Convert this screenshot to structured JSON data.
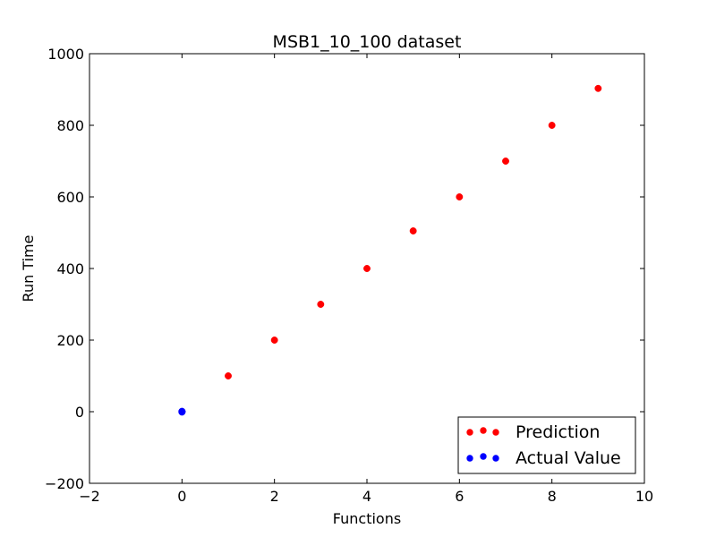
{
  "chart_data": {
    "type": "scatter",
    "title": "MSB1_10_100 dataset",
    "xlabel": "Functions",
    "ylabel": "Run Time",
    "xlim": [
      -2,
      10
    ],
    "ylim": [
      -200,
      1000
    ],
    "xticks": [
      -2,
      0,
      2,
      4,
      6,
      8,
      10
    ],
    "yticks": [
      -200,
      0,
      200,
      400,
      600,
      800,
      1000
    ],
    "xtick_labels": [
      "−2",
      "0",
      "2",
      "4",
      "6",
      "8",
      "10"
    ],
    "ytick_labels": [
      "−200",
      "0",
      "200",
      "400",
      "600",
      "800",
      "1000"
    ],
    "grid": false,
    "legend_position": "lower-right",
    "series": [
      {
        "name": "Prediction",
        "color": "#ff0000",
        "points": [
          [
            0,
            0
          ],
          [
            1,
            100
          ],
          [
            2,
            200
          ],
          [
            3,
            300
          ],
          [
            4,
            400
          ],
          [
            5,
            505
          ],
          [
            6,
            600
          ],
          [
            7,
            700
          ],
          [
            8,
            800
          ],
          [
            9,
            903
          ]
        ]
      },
      {
        "name": "Actual Value",
        "color": "#0000ff",
        "points": [
          [
            0,
            0
          ],
          [
            0,
            1
          ],
          [
            0,
            -1
          ],
          [
            0,
            0.5
          ]
        ]
      }
    ]
  }
}
